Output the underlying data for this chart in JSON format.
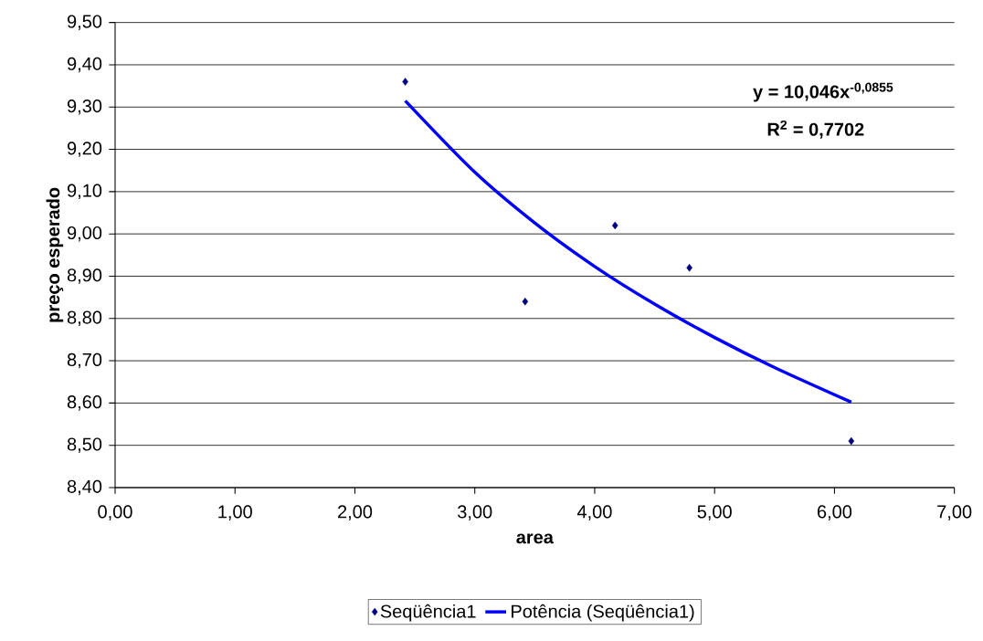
{
  "chart_data": {
    "type": "scatter",
    "xlabel": "area",
    "ylabel": "preço esperado",
    "xlim": [
      0,
      7
    ],
    "ylim": [
      8.4,
      9.5
    ],
    "xticks": [
      {
        "value": 0,
        "label": "0,00"
      },
      {
        "value": 1,
        "label": "1,00"
      },
      {
        "value": 2,
        "label": "2,00"
      },
      {
        "value": 3,
        "label": "3,00"
      },
      {
        "value": 4,
        "label": "4,00"
      },
      {
        "value": 5,
        "label": "5,00"
      },
      {
        "value": 6,
        "label": "6,00"
      },
      {
        "value": 7,
        "label": "7,00"
      }
    ],
    "yticks": [
      {
        "value": 8.4,
        "label": "8,40"
      },
      {
        "value": 8.5,
        "label": "8,50"
      },
      {
        "value": 8.6,
        "label": "8,60"
      },
      {
        "value": 8.7,
        "label": "8,70"
      },
      {
        "value": 8.8,
        "label": "8,80"
      },
      {
        "value": 8.9,
        "label": "8,90"
      },
      {
        "value": 9.0,
        "label": "9,00"
      },
      {
        "value": 9.1,
        "label": "9,10"
      },
      {
        "value": 9.2,
        "label": "9,20"
      },
      {
        "value": 9.3,
        "label": "9,30"
      },
      {
        "value": 9.4,
        "label": "9,40"
      },
      {
        "value": 9.5,
        "label": "9,50"
      }
    ],
    "grid": "y",
    "legend": "bottom",
    "marker": "diamond",
    "annotations": [
      "y = 10,046x$^{-0,0855}$",
      "R$^{2}$ = 0,7702"
    ],
    "series": [
      {
        "name": "Seqüência1",
        "color": "#000080",
        "x": [
          2.42,
          3.42,
          4.17,
          4.79,
          6.14
        ],
        "values": [
          9.36,
          8.84,
          9.02,
          8.92,
          8.51
        ]
      },
      {
        "name": "Potência (Seqüência1)",
        "type": "line",
        "marker": "none",
        "color": "#0000ff",
        "x": [
          2.42,
          3.0,
          3.5,
          4.0,
          4.5,
          5.0,
          5.5,
          6.14
        ],
        "values": [
          9.315,
          9.146,
          9.026,
          8.923,
          8.834,
          8.755,
          8.684,
          8.602
        ]
      }
    ]
  }
}
